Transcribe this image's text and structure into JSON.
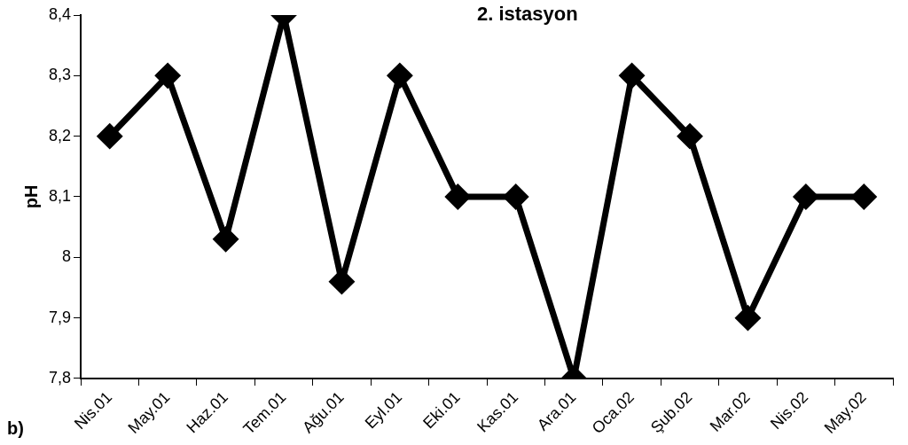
{
  "chart_data": {
    "type": "line",
    "title": "2. istasyon",
    "ylabel": "pH",
    "categories": [
      "Nis.01",
      "May.01",
      "Haz.01",
      "Tem.01",
      "Ağu.01",
      "Eyl.01",
      "Eki.01",
      "Kas.01",
      "Ara.01",
      "Oca.02",
      "Şub.02",
      "Mar.02",
      "Nis.02",
      "May.02"
    ],
    "series": [
      {
        "color": "#000000",
        "values": [
          8.2,
          8.3,
          8.03,
          8.4,
          7.96,
          8.3,
          8.1,
          8.1,
          7.8,
          8.3,
          8.2,
          7.9,
          8.1,
          8.1
        ]
      }
    ],
    "ylim": [
      7.8,
      8.4
    ],
    "yticks": [
      {
        "value": 7.8,
        "label": "7,8"
      },
      {
        "value": 7.9,
        "label": "7,9"
      },
      8,
      {
        "value": 8.1,
        "label": "8,1"
      },
      {
        "value": 8.2,
        "label": "8,2"
      },
      {
        "value": 8.3,
        "label": "8,3"
      },
      {
        "value": 8.4,
        "label": "8,4"
      }
    ],
    "grid": false,
    "legend": false,
    "marker": "diamond",
    "line_style": "solid",
    "annotations": [
      "b)"
    ]
  }
}
